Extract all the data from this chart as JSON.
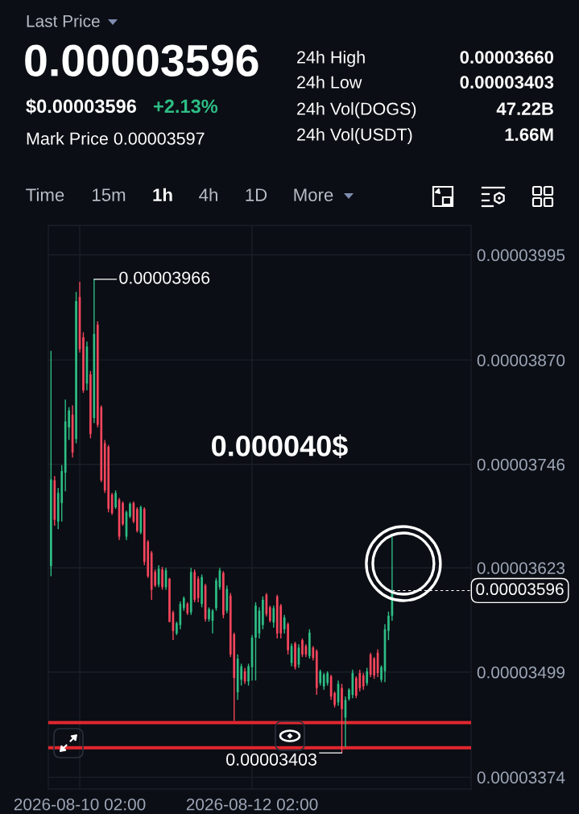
{
  "chart_data": [
    {
      "type": "other",
      "annotations": [
        "Last Price",
        "0.00003596",
        "$0.00003596",
        "+2.13%",
        "Mark Price 0.00003597",
        "24h High",
        "0.00003660",
        "24h Low",
        "0.00003403",
        "24h Vol(DOGS)",
        "47.22B",
        "24h Vol(USDT)",
        "1.66M",
        "Time",
        "15m",
        "1h",
        "4h",
        "1D",
        "More"
      ]
    },
    {
      "type": "candlestick",
      "x": [
        "2026-08-09T18:00",
        "2026-08-09T19:00",
        "2026-08-09T20:00",
        "2026-08-09T21:00",
        "2026-08-09T22:00",
        "2026-08-09T23:00",
        "2026-08-10T00:00",
        "2026-08-10T01:00",
        "2026-08-10T02:00",
        "2026-08-10T03:00",
        "2026-08-10T04:00",
        "2026-08-10T05:00",
        "2026-08-10T06:00",
        "2026-08-10T07:00",
        "2026-08-10T08:00",
        "2026-08-10T09:00",
        "2026-08-10T10:00",
        "2026-08-10T11:00",
        "2026-08-10T12:00",
        "2026-08-10T13:00",
        "2026-08-10T14:00",
        "2026-08-10T15:00",
        "2026-08-10T16:00",
        "2026-08-10T17:00",
        "2026-08-10T18:00",
        "2026-08-10T19:00",
        "2026-08-10T20:00",
        "2026-08-10T21:00",
        "2026-08-10T22:00",
        "2026-08-10T23:00",
        "2026-08-11T00:00",
        "2026-08-11T01:00",
        "2026-08-11T02:00",
        "2026-08-11T03:00",
        "2026-08-11T04:00",
        "2026-08-11T05:00",
        "2026-08-11T06:00",
        "2026-08-11T07:00",
        "2026-08-11T08:00",
        "2026-08-11T09:00",
        "2026-08-11T10:00",
        "2026-08-11T11:00",
        "2026-08-11T12:00",
        "2026-08-11T13:00",
        "2026-08-11T14:00",
        "2026-08-11T15:00",
        "2026-08-11T16:00",
        "2026-08-11T17:00",
        "2026-08-11T18:00",
        "2026-08-11T19:00",
        "2026-08-11T20:00",
        "2026-08-11T21:00",
        "2026-08-11T22:00",
        "2026-08-11T23:00",
        "2026-08-12T00:00",
        "2026-08-12T01:00",
        "2026-08-12T02:00",
        "2026-08-12T03:00",
        "2026-08-12T04:00",
        "2026-08-12T05:00",
        "2026-08-12T06:00",
        "2026-08-12T07:00",
        "2026-08-12T08:00",
        "2026-08-12T09:00",
        "2026-08-12T10:00",
        "2026-08-12T11:00",
        "2026-08-12T12:00",
        "2026-08-12T13:00",
        "2026-08-12T14:00",
        "2026-08-12T15:00",
        "2026-08-12T16:00",
        "2026-08-12T17:00",
        "2026-08-12T18:00",
        "2026-08-12T19:00",
        "2026-08-12T20:00",
        "2026-08-12T21:00",
        "2026-08-12T22:00",
        "2026-08-12T23:00",
        "2026-08-13T00:00",
        "2026-08-13T01:00",
        "2026-08-13T02:00",
        "2026-08-13T03:00",
        "2026-08-13T04:00",
        "2026-08-13T05:00",
        "2026-08-13T06:00",
        "2026-08-13T07:00",
        "2026-08-13T08:00",
        "2026-08-13T09:00",
        "2026-08-13T10:00",
        "2026-08-13T11:00",
        "2026-08-13T12:00",
        "2026-08-13T13:00",
        "2026-08-13T14:00",
        "2026-08-13T15:00",
        "2026-08-13T16:00",
        "2026-08-13T17:00"
      ],
      "ohlc": [
        [
          3.625e-05,
          3.881e-05,
          3.613e-05,
          3.728e-05
        ],
        [
          3.727e-05,
          3.732e-05,
          3.673e-05,
          3.68e-05
        ],
        [
          3.678e-05,
          3.718e-05,
          3.669e-05,
          3.712e-05
        ],
        [
          3.7e-05,
          3.745e-05,
          3.678e-05,
          3.738e-05
        ],
        [
          3.736e-05,
          3.823e-05,
          3.714e-05,
          3.797e-05
        ],
        [
          3.79e-05,
          3.814e-05,
          3.775e-05,
          3.81e-05
        ],
        [
          3.805e-05,
          3.816e-05,
          3.754e-05,
          3.76e-05
        ],
        [
          3.776e-05,
          3.951e-05,
          3.771e-05,
          3.94e-05
        ],
        [
          3.945e-05,
          3.963e-05,
          3.879e-05,
          3.883e-05
        ],
        [
          3.897e-05,
          3.903e-05,
          3.831e-05,
          3.834e-05
        ],
        [
          3.842e-05,
          3.892e-05,
          3.834e-05,
          3.886e-05
        ],
        [
          3.853e-05,
          3.857e-05,
          3.777e-05,
          3.782e-05
        ],
        [
          3.801e-05,
          3.966e-05,
          3.795e-05,
          3.901e-05
        ],
        [
          3.912e-05,
          3.916e-05,
          3.79e-05,
          3.793e-05
        ],
        [
          3.814e-05,
          3.816e-05,
          3.725e-05,
          3.727e-05
        ],
        [
          3.771e-05,
          3.775e-05,
          3.712e-05,
          3.715e-05
        ],
        [
          3.767e-05,
          3.769e-05,
          3.689e-05,
          3.693e-05
        ],
        [
          3.71e-05,
          3.712e-05,
          3.686e-05,
          3.688e-05
        ],
        [
          3.695e-05,
          3.715e-05,
          3.693e-05,
          3.712e-05
        ],
        [
          3.704e-05,
          3.706e-05,
          3.656e-05,
          3.66e-05
        ],
        [
          3.7e-05,
          3.702e-05,
          3.673e-05,
          3.675e-05
        ],
        [
          3.66e-05,
          3.691e-05,
          3.656e-05,
          3.689e-05
        ],
        [
          3.684e-05,
          3.701e-05,
          3.682e-05,
          3.699e-05
        ],
        [
          3.7e-05,
          3.702e-05,
          3.676e-05,
          3.678e-05
        ],
        [
          3.693e-05,
          3.695e-05,
          3.665e-05,
          3.667e-05
        ],
        [
          3.665e-05,
          3.697e-05,
          3.663e-05,
          3.695e-05
        ],
        [
          3.693e-05,
          3.695e-05,
          3.626e-05,
          3.63e-05
        ],
        [
          3.654e-05,
          3.656e-05,
          3.611e-05,
          3.613e-05
        ],
        [
          3.641e-05,
          3.643e-05,
          3.585e-05,
          3.597e-05
        ],
        [
          3.618e-05,
          3.621e-05,
          3.6e-05,
          3.602e-05
        ],
        [
          3.603e-05,
          3.626e-05,
          3.6e-05,
          3.622e-05
        ],
        [
          3.621e-05,
          3.624e-05,
          3.597e-05,
          3.6e-05
        ],
        [
          3.6e-05,
          3.623e-05,
          3.597e-05,
          3.62e-05
        ],
        [
          3.61e-05,
          3.611e-05,
          3.558e-05,
          3.559e-05
        ],
        [
          3.57e-05,
          3.572e-05,
          3.537e-05,
          3.548e-05
        ],
        [
          3.545e-05,
          3.559e-05,
          3.543e-05,
          3.557e-05
        ],
        [
          3.555e-05,
          3.583e-05,
          3.55e-05,
          3.58e-05
        ],
        [
          3.575e-05,
          3.589e-05,
          3.572e-05,
          3.587e-05
        ],
        [
          3.58e-05,
          3.582e-05,
          3.567e-05,
          3.569e-05
        ],
        [
          3.57e-05,
          3.623e-05,
          3.567e-05,
          3.618e-05
        ],
        [
          3.618e-05,
          3.621e-05,
          3.582e-05,
          3.585e-05
        ],
        [
          3.61e-05,
          3.613e-05,
          3.582e-05,
          3.587e-05
        ],
        [
          3.58e-05,
          3.615e-05,
          3.576e-05,
          3.612e-05
        ],
        [
          3.602e-05,
          3.604e-05,
          3.559e-05,
          3.562e-05
        ],
        [
          3.562e-05,
          3.576e-05,
          3.559e-05,
          3.574e-05
        ],
        [
          3.56e-05,
          3.574e-05,
          3.545e-05,
          3.572e-05
        ],
        [
          3.575e-05,
          3.611e-05,
          3.572e-05,
          3.608e-05
        ],
        [
          3.6e-05,
          3.623e-05,
          3.597e-05,
          3.62e-05
        ],
        [
          3.617e-05,
          3.619e-05,
          3.563e-05,
          3.567e-05
        ],
        [
          3.572e-05,
          3.602e-05,
          3.569e-05,
          3.598e-05
        ],
        [
          3.59e-05,
          3.593e-05,
          3.517e-05,
          3.52e-05
        ],
        [
          3.544e-05,
          3.546e-05,
          3.441e-05,
          3.492e-05
        ],
        [
          3.475e-05,
          3.52e-05,
          3.466e-05,
          3.515e-05
        ],
        [
          3.49e-05,
          3.509e-05,
          3.483e-05,
          3.506e-05
        ],
        [
          3.5e-05,
          3.504e-05,
          3.485e-05,
          3.488e-05
        ],
        [
          3.488e-05,
          3.509e-05,
          3.483e-05,
          3.506e-05
        ],
        [
          3.505e-05,
          3.543e-05,
          3.489e-05,
          3.54e-05
        ],
        [
          3.54e-05,
          3.582e-05,
          3.489e-05,
          3.578e-05
        ],
        [
          3.545e-05,
          3.576e-05,
          3.539e-05,
          3.572e-05
        ],
        [
          3.555e-05,
          3.589e-05,
          3.55e-05,
          3.585e-05
        ],
        [
          3.591e-05,
          3.593e-05,
          3.565e-05,
          3.568e-05
        ],
        [
          3.576e-05,
          3.578e-05,
          3.558e-05,
          3.56e-05
        ],
        [
          3.558e-05,
          3.578e-05,
          3.552e-05,
          3.575e-05
        ],
        [
          3.589e-05,
          3.591e-05,
          3.539e-05,
          3.545e-05
        ],
        [
          3.578e-05,
          3.58e-05,
          3.539e-05,
          3.545e-05
        ],
        [
          3.55e-05,
          3.567e-05,
          3.545e-05,
          3.564e-05
        ],
        [
          3.556e-05,
          3.558e-05,
          3.52e-05,
          3.525e-05
        ],
        [
          3.51e-05,
          3.533e-05,
          3.506e-05,
          3.53e-05
        ],
        [
          3.533e-05,
          3.535e-05,
          3.502e-05,
          3.505e-05
        ],
        [
          3.508e-05,
          3.532e-05,
          3.504e-05,
          3.528e-05
        ],
        [
          3.537e-05,
          3.539e-05,
          3.517e-05,
          3.52e-05
        ],
        [
          3.53e-05,
          3.532e-05,
          3.517e-05,
          3.52e-05
        ],
        [
          3.518e-05,
          3.55e-05,
          3.515e-05,
          3.546e-05
        ],
        [
          3.528e-05,
          3.53e-05,
          3.513e-05,
          3.516e-05
        ],
        [
          3.524e-05,
          3.526e-05,
          3.472e-05,
          3.48e-05
        ],
        [
          3.486e-05,
          3.502e-05,
          3.483e-05,
          3.5e-05
        ],
        [
          3.482e-05,
          3.498e-05,
          3.478e-05,
          3.496e-05
        ],
        [
          3.486e-05,
          3.5e-05,
          3.483e-05,
          3.498e-05
        ],
        [
          3.494e-05,
          3.496e-05,
          3.466e-05,
          3.47e-05
        ],
        [
          3.474e-05,
          3.476e-05,
          3.457e-05,
          3.46e-05
        ],
        [
          3.463e-05,
          3.489e-05,
          3.459e-05,
          3.485e-05
        ],
        [
          3.48e-05,
          3.485e-05,
          3.403e-05,
          3.455e-05
        ],
        [
          3.445e-05,
          3.47e-05,
          3.41e-05,
          3.466e-05
        ],
        [
          3.467e-05,
          3.48e-05,
          3.465e-05,
          3.478e-05
        ],
        [
          3.472e-05,
          3.502e-05,
          3.468e-05,
          3.498e-05
        ],
        [
          3.492e-05,
          3.494e-05,
          3.468e-05,
          3.471e-05
        ],
        [
          3.498e-05,
          3.502e-05,
          3.476e-05,
          3.48e-05
        ],
        [
          3.495e-05,
          3.498e-05,
          3.478e-05,
          3.482e-05
        ],
        [
          3.486e-05,
          3.504e-05,
          3.483e-05,
          3.5e-05
        ],
        [
          3.52e-05,
          3.522e-05,
          3.493e-05,
          3.496e-05
        ],
        [
          3.515e-05,
          3.517e-05,
          3.491e-05,
          3.495e-05
        ],
        [
          3.522e-05,
          3.526e-05,
          3.493e-05,
          3.498e-05
        ],
        [
          3.49e-05,
          3.507e-05,
          3.487e-05,
          3.505e-05
        ],
        [
          3.5e-05,
          3.556e-05,
          3.487e-05,
          3.55e-05
        ],
        [
          3.548e-05,
          3.571e-05,
          3.537e-05,
          3.566e-05
        ],
        [
          3.566e-05,
          3.66e-05,
          3.56e-05,
          3.596e-05
        ]
      ],
      "xlim": [
        "2026-08-09T17:15",
        "2026-08-14T15:00"
      ],
      "xticks": [
        {
          "value": "2026-08-10T02:00",
          "label": "2026-08-10 02:00"
        },
        {
          "value": "2026-08-12T02:00",
          "label": "2026-08-12 02:00"
        }
      ],
      "ylim": [
        3.36e-05,
        4.03e-05
      ],
      "yticks": [
        {
          "value": 3.374e-05,
          "label": "0.00003374"
        },
        {
          "value": 3.499e-05,
          "label": "0.00003499"
        },
        {
          "value": 3.623e-05,
          "label": "0.00003623"
        },
        {
          "value": 3.746e-05,
          "label": "0.00003746"
        },
        {
          "value": 3.87e-05,
          "label": "0.00003870"
        },
        {
          "value": 3.995e-05,
          "label": "0.00003995"
        }
      ],
      "grid": true,
      "ref_lines": [
        {
          "axis": "y",
          "value": 3.596e-05,
          "label": "0.00003596",
          "color": "#ffffff",
          "line_style": "dashed"
        },
        {
          "axis": "y",
          "value": 3.439e-05,
          "color": "#e3262f",
          "line_style": "solid"
        },
        {
          "axis": "y",
          "value": 3.409e-05,
          "color": "#e3262f",
          "line_style": "solid"
        }
      ],
      "annotations": [
        "0.000040$",
        {
          "text": "0.00003966",
          "x": "2026-08-10T06:00",
          "y": 3.966e-05
        },
        {
          "text": "0.00003403",
          "x": "2026-08-13T03:00",
          "y": 3.403e-05
        }
      ]
    }
  ]
}
